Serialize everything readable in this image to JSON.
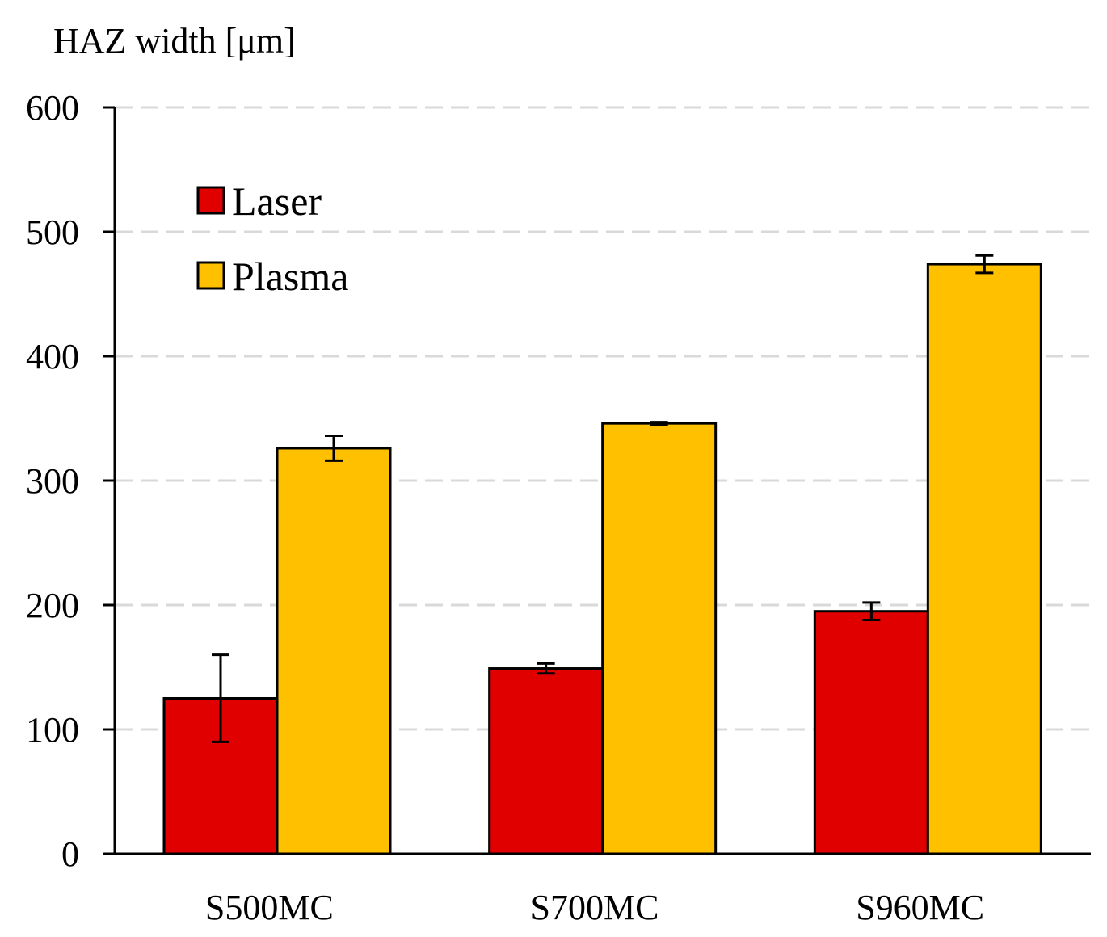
{
  "chart_data": {
    "type": "bar",
    "ylabel": "HAZ width [μm]",
    "xlabel": "",
    "ylim": [
      0,
      600
    ],
    "yticks": [
      0,
      100,
      200,
      300,
      400,
      500,
      600
    ],
    "grid": true,
    "legend_position": "top-left",
    "categories": [
      "S500MC",
      "S700MC",
      "S960MC"
    ],
    "series": [
      {
        "name": "Laser",
        "color": "#E00000",
        "values": [
          125,
          149,
          195
        ],
        "errors": [
          35,
          4,
          7
        ]
      },
      {
        "name": "Plasma",
        "color": "#FFC000",
        "values": [
          326,
          346,
          474
        ],
        "errors": [
          10,
          1,
          7
        ]
      }
    ]
  }
}
